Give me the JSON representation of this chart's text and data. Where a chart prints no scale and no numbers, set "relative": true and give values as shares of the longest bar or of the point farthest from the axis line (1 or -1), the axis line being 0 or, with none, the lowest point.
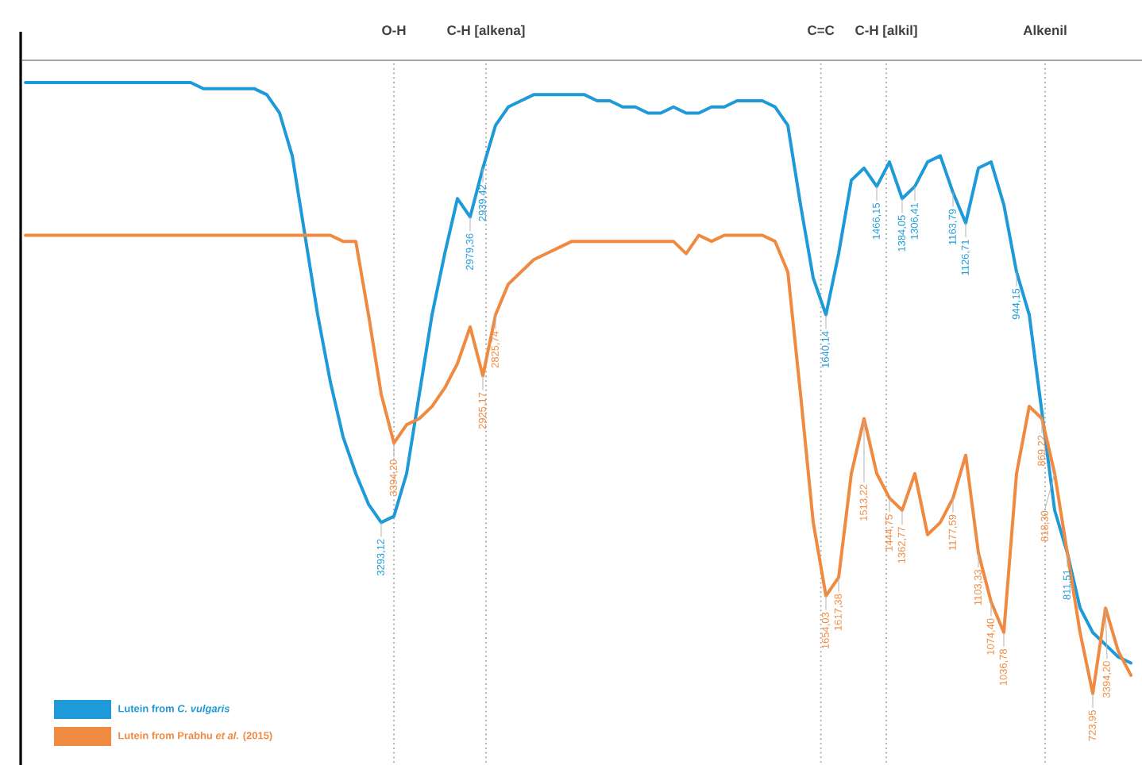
{
  "chart_data": {
    "type": "line",
    "relative": true,
    "legend": "bottom left",
    "categories": [
      null,
      null,
      null,
      null,
      null,
      null,
      null,
      null,
      null,
      null,
      null,
      null,
      null,
      null,
      null,
      null,
      null,
      null,
      null,
      null,
      null,
      null,
      null,
      null,
      null,
      null,
      null,
      null,
      null,
      null,
      null,
      null,
      null,
      null,
      null,
      null,
      null,
      null,
      null,
      null,
      null,
      null,
      null,
      null,
      null,
      null,
      null,
      null,
      null,
      null,
      null,
      null,
      null,
      null,
      null,
      null,
      null,
      null,
      null,
      null,
      null,
      null,
      null,
      null,
      null,
      null,
      null,
      null,
      null,
      null,
      null,
      null,
      null,
      null,
      null,
      null,
      null,
      null,
      null,
      null,
      null,
      null,
      null,
      null,
      null,
      null,
      null,
      null
    ],
    "series": [
      {
        "name": "Lutein from *C. vulgaris*",
        "color": "#1f9ad8",
        "values": [
          1.0,
          1.0,
          1.0,
          1.0,
          1.0,
          1.0,
          1.0,
          1.0,
          1.0,
          1.0,
          1.0,
          1.0,
          1.0,
          1.0,
          0.99,
          0.99,
          0.99,
          0.99,
          0.99,
          0.98,
          0.95,
          0.88,
          0.75,
          0.62,
          0.51,
          0.42,
          0.36,
          0.31,
          0.28,
          0.29,
          0.36,
          0.49,
          0.62,
          0.72,
          0.81,
          0.78,
          0.86,
          0.93,
          0.96,
          0.97,
          0.98,
          0.98,
          0.98,
          0.98,
          0.98,
          0.97,
          0.97,
          0.96,
          0.96,
          0.95,
          0.95,
          0.96,
          0.95,
          0.95,
          0.96,
          0.96,
          0.97,
          0.97,
          0.97,
          0.96,
          0.93,
          0.8,
          0.68,
          0.62,
          0.72,
          0.84,
          0.86,
          0.83,
          0.87,
          0.81,
          0.83,
          0.87,
          0.88,
          0.82,
          0.77,
          0.86,
          0.87,
          0.8,
          0.69,
          0.62,
          0.46,
          0.3,
          0.23,
          0.14,
          0.1,
          0.08,
          0.06,
          0.05
        ]
      },
      {
        "name": "Lutein from Prabhu *et al.* (2015)",
        "color": "#f08a40",
        "values": [
          0.75,
          0.75,
          0.75,
          0.75,
          0.75,
          0.75,
          0.75,
          0.75,
          0.75,
          0.75,
          0.75,
          0.75,
          0.75,
          0.75,
          0.75,
          0.75,
          0.75,
          0.75,
          0.75,
          0.75,
          0.75,
          0.75,
          0.75,
          0.75,
          0.75,
          0.74,
          0.74,
          0.62,
          0.49,
          0.41,
          0.44,
          0.45,
          0.47,
          0.5,
          0.54,
          0.6,
          0.52,
          0.62,
          0.67,
          0.69,
          0.71,
          0.72,
          0.73,
          0.74,
          0.74,
          0.74,
          0.74,
          0.74,
          0.74,
          0.74,
          0.74,
          0.74,
          0.72,
          0.75,
          0.74,
          0.75,
          0.75,
          0.75,
          0.75,
          0.74,
          0.69,
          0.49,
          0.28,
          0.16,
          0.19,
          0.36,
          0.45,
          0.36,
          0.32,
          0.3,
          0.36,
          0.26,
          0.28,
          0.32,
          0.39,
          0.23,
          0.15,
          0.1,
          0.36,
          0.47,
          0.45,
          0.36,
          0.23,
          0.1,
          0.0,
          0.14,
          0.07,
          0.03
        ]
      }
    ],
    "annotations": [
      "O-H",
      "C-H [alkena]",
      "C=C",
      "C-H [alkil]",
      "Alkenil",
      "3293,12",
      "2979,36",
      "2939,42",
      "1640,14",
      "1466,15",
      "1384,05",
      "1306,41",
      "1163,79",
      "1126,71",
      "944,15",
      "811,51",
      "3394,20",
      "2925,17",
      "2825,74",
      "1654,03",
      "1617,38",
      "1513,22",
      "1444,75",
      "1362,77",
      "1177,59",
      "1103,33",
      "1074,40",
      "1036,78",
      "869,22",
      "818,30",
      "723,95",
      "3394,20"
    ]
  }
}
